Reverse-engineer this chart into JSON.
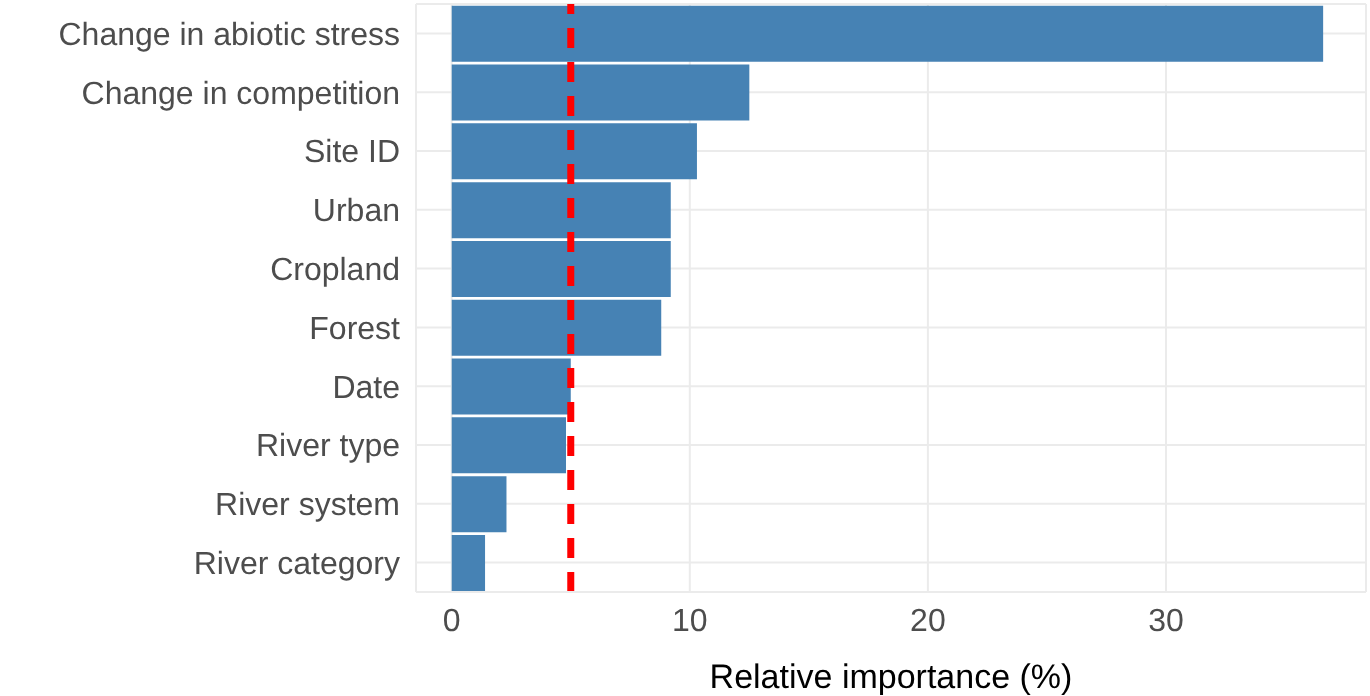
{
  "chart_data": {
    "type": "bar",
    "orientation": "horizontal",
    "xlabel": "Relative importance (%)",
    "categories": [
      "Change in abiotic stress",
      "Change in competition",
      "Site ID",
      "Urban",
      "Cropland",
      "Forest",
      "Date",
      "River type",
      "River system",
      "River category"
    ],
    "values": [
      36.6,
      12.5,
      10.3,
      9.2,
      9.2,
      8.8,
      5.0,
      4.8,
      2.3,
      1.4
    ],
    "color": "#4682b4",
    "xlim": [
      -1.5,
      38.4
    ],
    "xticks": [
      0,
      10,
      20,
      30
    ],
    "grid": true,
    "ref_lines": [
      {
        "axis": "x",
        "value": 5,
        "color": "#ff0000",
        "line_style": "dashed"
      }
    ]
  }
}
